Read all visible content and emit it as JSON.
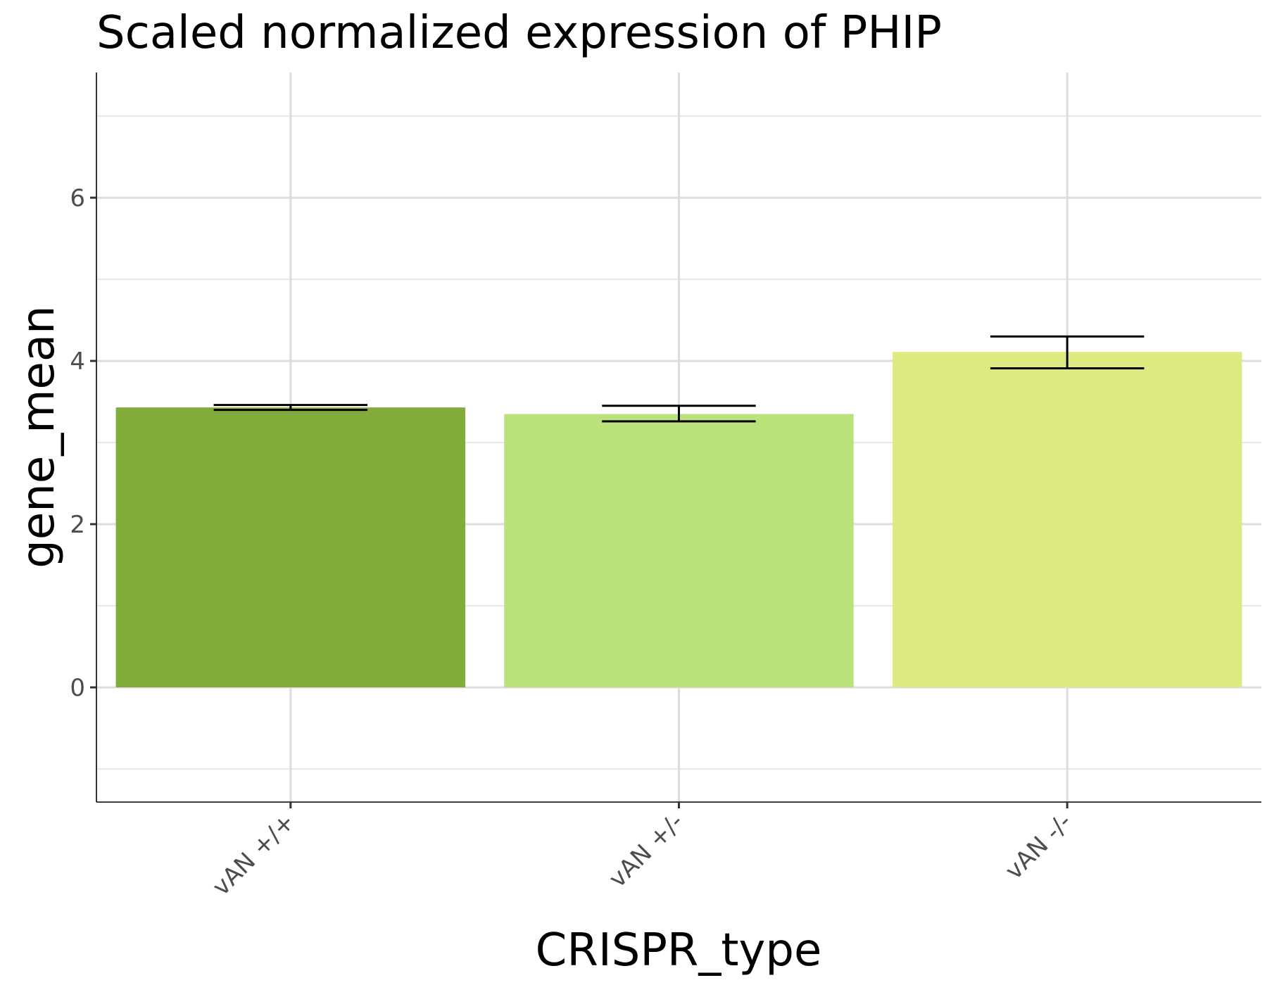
{
  "chart_data": {
    "type": "bar",
    "title": "Scaled normalized expression of PHIP",
    "xlabel": "CRISPR_type",
    "ylabel": "gene_mean",
    "categories": [
      "vAN +/+",
      "vAN +/-",
      "vAN -/-"
    ],
    "values": [
      3.43,
      3.35,
      4.11
    ],
    "errors": [
      {
        "low": 3.4,
        "high": 3.46
      },
      {
        "low": 3.26,
        "high": 3.45
      },
      {
        "low": 3.91,
        "high": 4.3
      }
    ],
    "colors": [
      "#82ad3c",
      "#bbe27a",
      "#dfe981"
    ],
    "ylim": [
      -1.4,
      7.5
    ],
    "yticks": [
      0,
      2,
      4,
      6
    ],
    "yticks_minor": [
      -1,
      1,
      3,
      5,
      7
    ],
    "grid": true,
    "legend": "none"
  }
}
